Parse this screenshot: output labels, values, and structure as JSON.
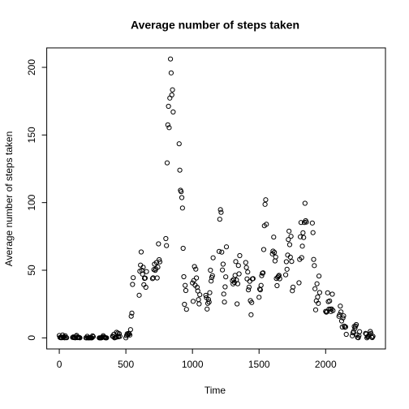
{
  "chart_data": {
    "type": "scatter",
    "title": "Average number of steps taken",
    "xlabel": "Time",
    "ylabel": "Average number of steps taken",
    "color": "#000000",
    "x": [
      0,
      5,
      10,
      15,
      20,
      25,
      30,
      35,
      40,
      45,
      50,
      55,
      100,
      105,
      110,
      115,
      120,
      125,
      130,
      135,
      140,
      145,
      150,
      155,
      200,
      205,
      210,
      215,
      220,
      225,
      230,
      235,
      240,
      245,
      250,
      255,
      300,
      305,
      310,
      315,
      320,
      325,
      330,
      335,
      340,
      345,
      350,
      355,
      400,
      405,
      410,
      415,
      420,
      425,
      430,
      435,
      440,
      445,
      450,
      455,
      500,
      505,
      510,
      515,
      520,
      525,
      530,
      535,
      540,
      545,
      550,
      555,
      600,
      605,
      610,
      615,
      620,
      625,
      630,
      635,
      640,
      645,
      650,
      655,
      700,
      705,
      710,
      715,
      720,
      725,
      730,
      735,
      740,
      745,
      750,
      755,
      800,
      805,
      810,
      815,
      820,
      825,
      830,
      835,
      840,
      845,
      850,
      855,
      900,
      905,
      910,
      915,
      920,
      925,
      930,
      935,
      940,
      945,
      950,
      955,
      1000,
      1005,
      1010,
      1015,
      1020,
      1025,
      1030,
      1035,
      1040,
      1045,
      1050,
      1055,
      1100,
      1105,
      1110,
      1115,
      1120,
      1125,
      1130,
      1135,
      1140,
      1145,
      1150,
      1155,
      1200,
      1205,
      1210,
      1215,
      1220,
      1225,
      1230,
      1235,
      1240,
      1245,
      1250,
      1255,
      1300,
      1305,
      1310,
      1315,
      1320,
      1325,
      1330,
      1335,
      1340,
      1345,
      1350,
      1355,
      1400,
      1405,
      1410,
      1415,
      1420,
      1425,
      1430,
      1435,
      1440,
      1445,
      1450,
      1455,
      1500,
      1505,
      1510,
      1515,
      1520,
      1525,
      1530,
      1535,
      1540,
      1545,
      1550,
      1555,
      1600,
      1605,
      1610,
      1615,
      1620,
      1625,
      1630,
      1635,
      1640,
      1645,
      1650,
      1655,
      1700,
      1705,
      1710,
      1715,
      1720,
      1725,
      1730,
      1735,
      1740,
      1745,
      1750,
      1755,
      1800,
      1805,
      1810,
      1815,
      1820,
      1825,
      1830,
      1835,
      1840,
      1845,
      1850,
      1855,
      1900,
      1905,
      1910,
      1915,
      1920,
      1925,
      1930,
      1935,
      1940,
      1945,
      1950,
      1955,
      2000,
      2005,
      2010,
      2015,
      2020,
      2025,
      2030,
      2035,
      2040,
      2045,
      2050,
      2055,
      2100,
      2105,
      2110,
      2115,
      2120,
      2125,
      2130,
      2135,
      2140,
      2145,
      2150,
      2155,
      2200,
      2205,
      2210,
      2215,
      2220,
      2225,
      2230,
      2235,
      2240,
      2245,
      2250,
      2255,
      2300,
      2305,
      2310,
      2315,
      2320,
      2325,
      2330,
      2335,
      2340,
      2345,
      2350,
      2355
    ],
    "values": [
      1.7,
      0.3,
      0.1,
      0.2,
      0.1,
      2.1,
      0.5,
      0.9,
      0,
      1.5,
      0.3,
      0.1,
      0.3,
      0.7,
      0.2,
      0.3,
      0,
      1.1,
      1.8,
      0.2,
      0.2,
      0.4,
      0.3,
      0,
      0,
      0,
      1.1,
      0,
      0,
      0.1,
      0,
      0.2,
      0,
      0,
      1.5,
      0.9,
      0,
      0,
      0,
      0,
      0.2,
      0.6,
      1.6,
      0.6,
      0.5,
      0.1,
      0,
      0,
      1.2,
      0.9,
      2.6,
      0,
      0.3,
      0.4,
      4.1,
      0.7,
      3.5,
      0.8,
      3.1,
      1.1,
      0,
      1.6,
      3.0,
      2.2,
      3.3,
      3.0,
      2.1,
      6.1,
      16.0,
      18.3,
      39.5,
      44.5,
      31.5,
      49.3,
      53.8,
      63.5,
      50.0,
      47.1,
      52.2,
      39.3,
      44.0,
      44.2,
      37.4,
      49.0,
      43.8,
      44.4,
      50.5,
      54.5,
      49.9,
      51.0,
      55.7,
      44.3,
      52.3,
      69.5,
      57.8,
      56.2,
      73.4,
      68.2,
      129.4,
      157.5,
      171.2,
      155.4,
      177.3,
      206.2,
      195.9,
      179.6,
      183.4,
      167.0,
      143.5,
      124.0,
      109.1,
      108.1,
      103.7,
      96.0,
      66.2,
      45.2,
      24.8,
      38.8,
      35.0,
      21.1,
      40.6,
      27.0,
      42.4,
      52.7,
      38.9,
      50.8,
      44.3,
      37.4,
      34.7,
      28.3,
      25.1,
      31.9,
      31.4,
      29.7,
      21.3,
      25.5,
      28.4,
      26.5,
      33.4,
      50.0,
      42.0,
      44.6,
      46.0,
      59.2,
      63.9,
      87.7,
      94.8,
      92.8,
      63.4,
      50.2,
      54.5,
      32.4,
      26.5,
      37.7,
      45.1,
      67.3,
      42.3,
      39.9,
      43.3,
      41.0,
      46.2,
      56.4,
      42.8,
      25.1,
      40.0,
      53.5,
      47.3,
      60.8,
      55.7,
      52.0,
      43.6,
      48.7,
      35.5,
      37.5,
      41.8,
      27.5,
      17.1,
      26.1,
      43.6,
      43.8,
      30.0,
      36.1,
      35.5,
      38.8,
      46.0,
      47.8,
      48.1,
      65.3,
      82.9,
      98.7,
      102.1,
      84.0,
      62.1,
      64.1,
      74.5,
      63.2,
      56.9,
      59.8,
      43.9,
      38.6,
      44.7,
      45.5,
      46.2,
      43.7,
      46.6,
      56.3,
      50.7,
      61.2,
      72.7,
      78.9,
      68.9,
      59.7,
      75.1,
      56.5,
      34.8,
      37.5,
      40.7,
      58.0,
      74.7,
      85.3,
      59.3,
      67.8,
      77.7,
      74.2,
      85.3,
      99.5,
      86.6,
      85.6,
      84.9,
      77.8,
      58.0,
      53.4,
      36.3,
      20.7,
      27.4,
      40.0,
      30.2,
      25.5,
      45.7,
      33.5,
      19.6,
      19.0,
      19.3,
      33.3,
      26.8,
      21.2,
      27.3,
      21.3,
      19.5,
      21.3,
      32.3,
      20.2,
      15.9,
      17.2,
      23.5,
      19.2,
      12.5,
      8.0,
      14.7,
      16.3,
      8.7,
      7.8,
      8.1,
      2.6,
      1.5,
      3.7,
      4.8,
      8.5,
      7.1,
      8.7,
      9.8,
      2.2,
      0.3,
      0.1,
      1.6,
      4.6,
      3.3,
      2.8,
      0,
      0.8,
      1.0,
      1.6,
      2.6,
      4.7,
      3.3,
      0.6,
      0.2,
      1.1
    ],
    "xlim": [
      -94.2,
      2449.2
    ],
    "ylim": [
      -8.2,
      214.4
    ],
    "xticks": [
      0,
      500,
      1000,
      1500,
      2000
    ],
    "yticks": [
      0,
      50,
      100,
      150,
      200
    ]
  }
}
